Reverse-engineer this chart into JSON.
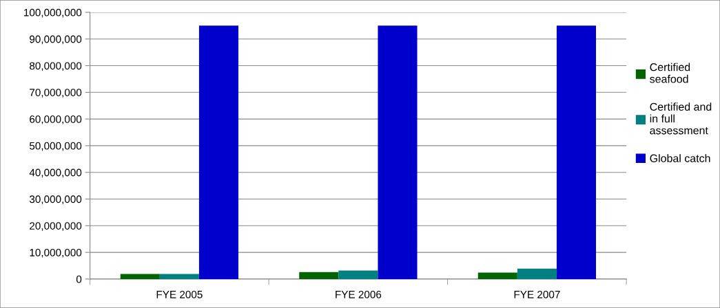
{
  "chart_data": {
    "type": "bar",
    "categories": [
      "FYE 2005",
      "FYE 2006",
      "FYE 2007"
    ],
    "series": [
      {
        "name": "Certified seafood",
        "color": "#006400",
        "values": [
          1900000,
          2600000,
          2400000
        ]
      },
      {
        "name": "Certified and in full assessment",
        "color": "#008080",
        "values": [
          1900000,
          3200000,
          3900000
        ]
      },
      {
        "name": "Global catch",
        "color": "#0000cc",
        "values": [
          95000000,
          95000000,
          95000000
        ]
      }
    ],
    "ylim": [
      0,
      100000000
    ],
    "yticks": [
      {
        "value": 0,
        "label": "0"
      },
      {
        "value": 10000000,
        "label": "10,000,000"
      },
      {
        "value": 20000000,
        "label": "20,000,000"
      },
      {
        "value": 30000000,
        "label": "30,000,000"
      },
      {
        "value": 40000000,
        "label": "40,000,000"
      },
      {
        "value": 50000000,
        "label": "50,000,000"
      },
      {
        "value": 60000000,
        "label": "60,000,000"
      },
      {
        "value": 70000000,
        "label": "70,000,000"
      },
      {
        "value": 80000000,
        "label": "80,000,000"
      },
      {
        "value": 90000000,
        "label": "90,000,000"
      },
      {
        "value": 100000000,
        "label": "100,000,000"
      }
    ],
    "grid": "y",
    "legend": "right"
  }
}
